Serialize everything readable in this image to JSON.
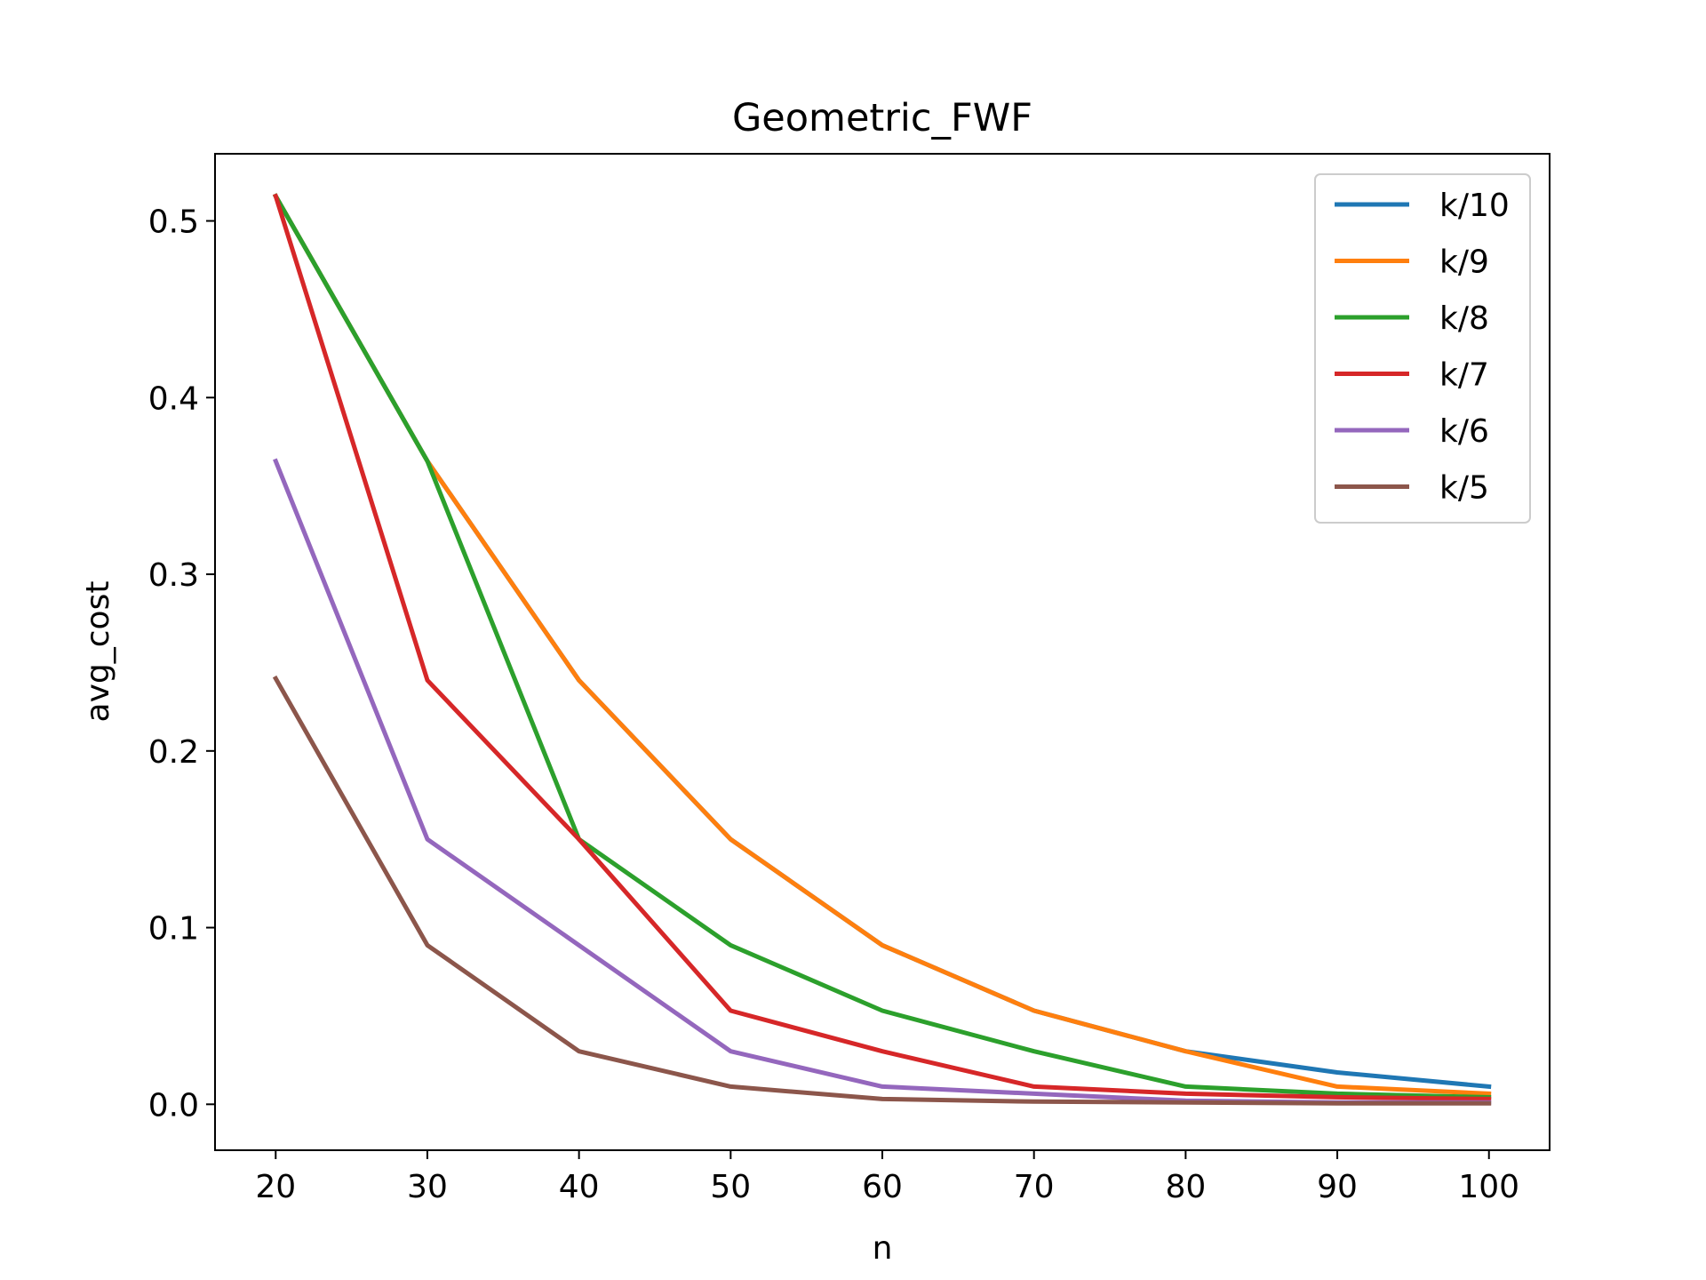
{
  "chart_data": {
    "type": "line",
    "title": "Geometric_FWF",
    "xlabel": "n",
    "ylabel": "avg_cost",
    "x": [
      20,
      30,
      40,
      50,
      60,
      70,
      80,
      90,
      100
    ],
    "xticks": [
      20,
      30,
      40,
      50,
      60,
      70,
      80,
      90,
      100
    ],
    "yticks": [
      0.0,
      0.1,
      0.2,
      0.3,
      0.4,
      0.5
    ],
    "ytick_labels": [
      "0.0",
      "0.1",
      "0.2",
      "0.3",
      "0.4",
      "0.5"
    ],
    "xlim": [
      16,
      104
    ],
    "ylim": [
      -0.026,
      0.538
    ],
    "grid": false,
    "legend_position": "upper right",
    "series": [
      {
        "name": "k/10",
        "color": "#1f77b4",
        "values": [
          0.514,
          0.364,
          0.24,
          0.15,
          0.09,
          0.053,
          0.03,
          0.018,
          0.01
        ]
      },
      {
        "name": "k/9",
        "color": "#ff7f0e",
        "values": [
          0.514,
          0.364,
          0.24,
          0.15,
          0.09,
          0.053,
          0.03,
          0.01,
          0.006
        ]
      },
      {
        "name": "k/8",
        "color": "#2ca02c",
        "values": [
          0.514,
          0.364,
          0.15,
          0.09,
          0.053,
          0.03,
          0.01,
          0.006,
          0.004
        ]
      },
      {
        "name": "k/7",
        "color": "#d62728",
        "values": [
          0.514,
          0.24,
          0.15,
          0.053,
          0.03,
          0.01,
          0.006,
          0.004,
          0.003
        ]
      },
      {
        "name": "k/6",
        "color": "#9467bd",
        "values": [
          0.364,
          0.15,
          0.09,
          0.03,
          0.01,
          0.006,
          0.002,
          0.001,
          0.001
        ]
      },
      {
        "name": "k/5",
        "color": "#8c564b",
        "values": [
          0.241,
          0.09,
          0.03,
          0.01,
          0.003,
          0.0015,
          0.001,
          0.0005,
          0.0005
        ]
      }
    ]
  }
}
